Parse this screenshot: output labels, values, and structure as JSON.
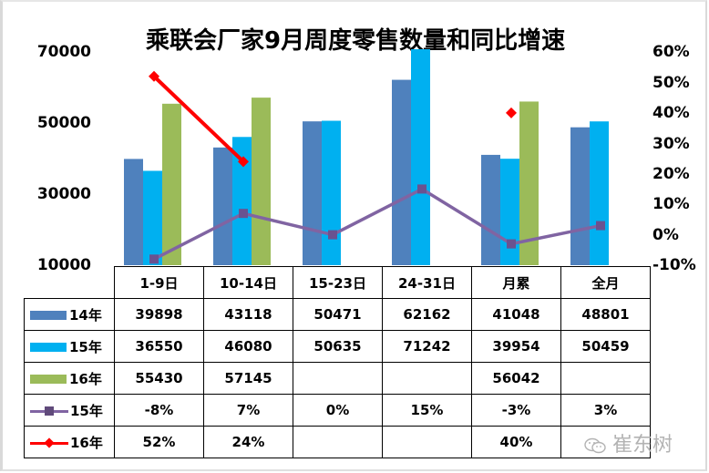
{
  "chart_data": {
    "type": "bar",
    "title": "乘联会厂家9月周度零售数量和同比增速",
    "categories": [
      "1-9日",
      "10-14日",
      "15-23日",
      "24-31日",
      "月累",
      "全月"
    ],
    "series": [
      {
        "name": "14年",
        "type": "bar",
        "axis": "left",
        "color": "#4f81bd",
        "values": [
          39898,
          43118,
          50471,
          62162,
          41048,
          48801
        ]
      },
      {
        "name": "15年",
        "type": "bar",
        "axis": "left",
        "color": "#00b0f0",
        "values": [
          36550,
          46080,
          50635,
          71242,
          39954,
          50459
        ]
      },
      {
        "name": "16年",
        "type": "bar",
        "axis": "left",
        "color": "#9bbb59",
        "values": [
          55430,
          57145,
          null,
          null,
          56042,
          null
        ]
      },
      {
        "name": "15年",
        "type": "line",
        "axis": "right",
        "color": "#8064a2",
        "marker": "square",
        "values": [
          -8,
          7,
          0,
          15,
          -3,
          3
        ],
        "labels": [
          "-8%",
          "7%",
          "0%",
          "15%",
          "-3%",
          "3%"
        ]
      },
      {
        "name": "16年",
        "type": "line",
        "axis": "right",
        "color": "#ff0000",
        "marker": "diamond",
        "values": [
          52,
          24,
          null,
          null,
          40,
          null
        ],
        "labels": [
          "52%",
          "24%",
          "",
          "",
          "40%",
          ""
        ]
      }
    ],
    "left_axis": {
      "min": 10000,
      "max": 70000,
      "ticks": [
        "70000",
        "50000",
        "30000",
        "10000"
      ]
    },
    "right_axis": {
      "min": -10,
      "max": 60,
      "ticks": [
        "60%",
        "50%",
        "40%",
        "30%",
        "20%",
        "10%",
        "0%",
        "-10%"
      ]
    },
    "grid": false,
    "legend_position": "data-table"
  },
  "header": {
    "title": "乘联会厂家9月周度零售数量和同比增速"
  },
  "axes": {
    "left_ticks": [
      "70000",
      "50000",
      "30000",
      "10000"
    ],
    "right_ticks": [
      "60%",
      "50%",
      "40%",
      "30%",
      "20%",
      "10%",
      "0%",
      "-10%"
    ]
  },
  "table": {
    "columns": [
      "1-9日",
      "10-14日",
      "15-23日",
      "24-31日",
      "月累",
      "全月"
    ],
    "rows": [
      {
        "label": "14年",
        "cells": [
          "39898",
          "43118",
          "50471",
          "62162",
          "41048",
          "48801"
        ]
      },
      {
        "label": "15年",
        "cells": [
          "36550",
          "46080",
          "50635",
          "71242",
          "39954",
          "50459"
        ]
      },
      {
        "label": "16年",
        "cells": [
          "55430",
          "57145",
          "",
          "",
          "56042",
          ""
        ]
      },
      {
        "label": "15年",
        "cells": [
          "-8%",
          "7%",
          "0%",
          "15%",
          "-3%",
          "3%"
        ]
      },
      {
        "label": "16年",
        "cells": [
          "52%",
          "24%",
          "",
          "",
          "40%",
          ""
        ]
      }
    ]
  },
  "colors": {
    "s14": "#4f81bd",
    "s15": "#00b0f0",
    "s16": "#9bbb59",
    "l15": "#8064a2",
    "l16": "#ff0000"
  },
  "watermark": {
    "text": "崔东树",
    "icon": "wechat-icon"
  }
}
